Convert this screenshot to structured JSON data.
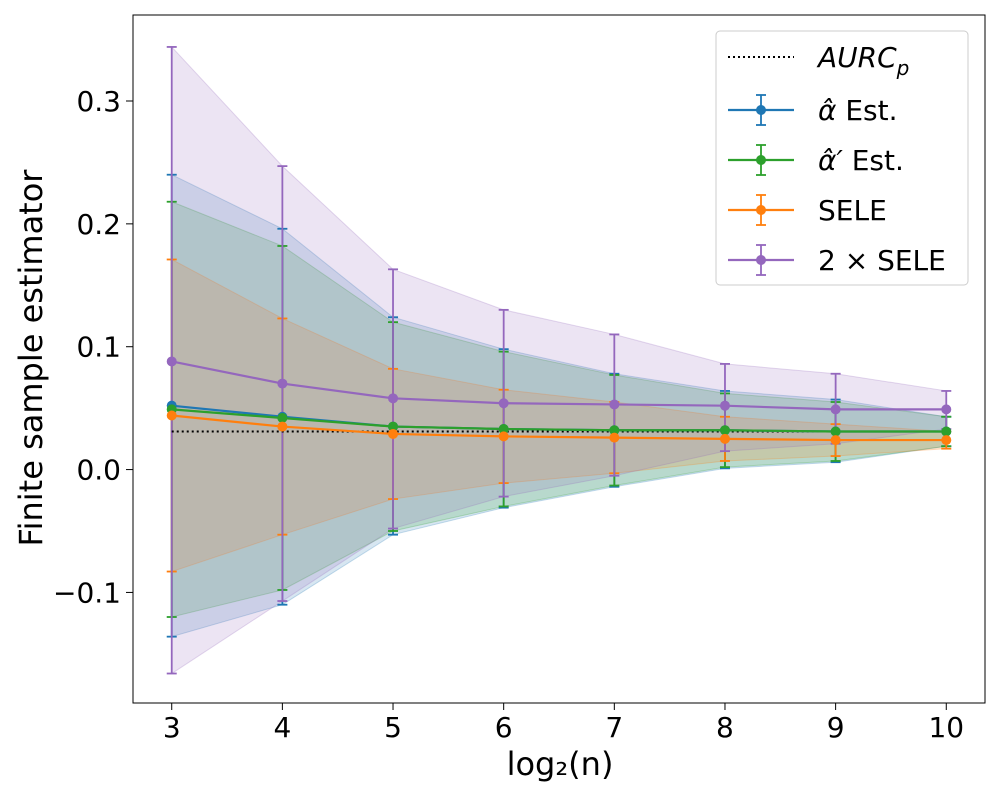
{
  "chart_data": {
    "type": "line",
    "xlabel": "log₂(n)",
    "ylabel": "Finite sample estimator",
    "x": [
      3,
      4,
      5,
      6,
      7,
      8,
      9,
      10
    ],
    "xlim": [
      2.65,
      10.35
    ],
    "ylim": [
      -0.19,
      0.37
    ],
    "xticks": [
      3,
      4,
      5,
      6,
      7,
      8,
      9,
      10
    ],
    "yticks": [
      -0.1,
      0.0,
      0.1,
      0.2,
      0.3
    ],
    "ytick_labels": [
      "−0.1",
      "0.0",
      "0.1",
      "0.2",
      "0.3"
    ],
    "grid": false,
    "legend_position": "top-right",
    "reference_line": {
      "name": "AURC_p",
      "legend_main": "AURC",
      "legend_sub": "p",
      "value": 0.031,
      "color": "#000000",
      "style": "dotted"
    },
    "series": [
      {
        "name": "α̂ Est.",
        "legend_main": "α̂",
        "legend_suffix": " Est.",
        "color": "#1f77b4",
        "values": [
          0.052,
          0.043,
          0.035,
          0.033,
          0.032,
          0.032,
          0.031,
          0.031
        ],
        "lower": [
          -0.136,
          -0.11,
          -0.053,
          -0.031,
          -0.014,
          0.001,
          0.006,
          0.019
        ],
        "upper": [
          0.24,
          0.196,
          0.124,
          0.098,
          0.078,
          0.064,
          0.057,
          0.043
        ]
      },
      {
        "name": "α̂′ Est.",
        "legend_main": "α̂′",
        "legend_suffix": " Est.",
        "color": "#2ca02c",
        "values": [
          0.049,
          0.042,
          0.035,
          0.033,
          0.032,
          0.032,
          0.031,
          0.031
        ],
        "lower": [
          -0.12,
          -0.098,
          -0.05,
          -0.03,
          -0.013,
          0.002,
          0.007,
          0.019
        ],
        "upper": [
          0.218,
          0.182,
          0.12,
          0.096,
          0.077,
          0.062,
          0.055,
          0.043
        ]
      },
      {
        "name": "SELE",
        "legend_main": "SELE",
        "legend_suffix": "",
        "color": "#ff7f0e",
        "values": [
          0.044,
          0.035,
          0.029,
          0.027,
          0.026,
          0.025,
          0.024,
          0.024
        ],
        "lower": [
          -0.083,
          -0.053,
          -0.024,
          -0.011,
          -0.003,
          0.007,
          0.011,
          0.017
        ],
        "upper": [
          0.171,
          0.123,
          0.082,
          0.065,
          0.055,
          0.043,
          0.037,
          0.031
        ]
      },
      {
        "name": "2 × SELE",
        "legend_main": "2 × SELE",
        "legend_suffix": "",
        "color": "#9467bd",
        "values": [
          0.088,
          0.07,
          0.058,
          0.054,
          0.053,
          0.052,
          0.049,
          0.049
        ],
        "lower": [
          -0.166,
          -0.107,
          -0.048,
          -0.022,
          -0.005,
          0.015,
          0.021,
          0.033
        ],
        "upper": [
          0.344,
          0.247,
          0.163,
          0.13,
          0.11,
          0.086,
          0.078,
          0.064
        ]
      }
    ]
  }
}
